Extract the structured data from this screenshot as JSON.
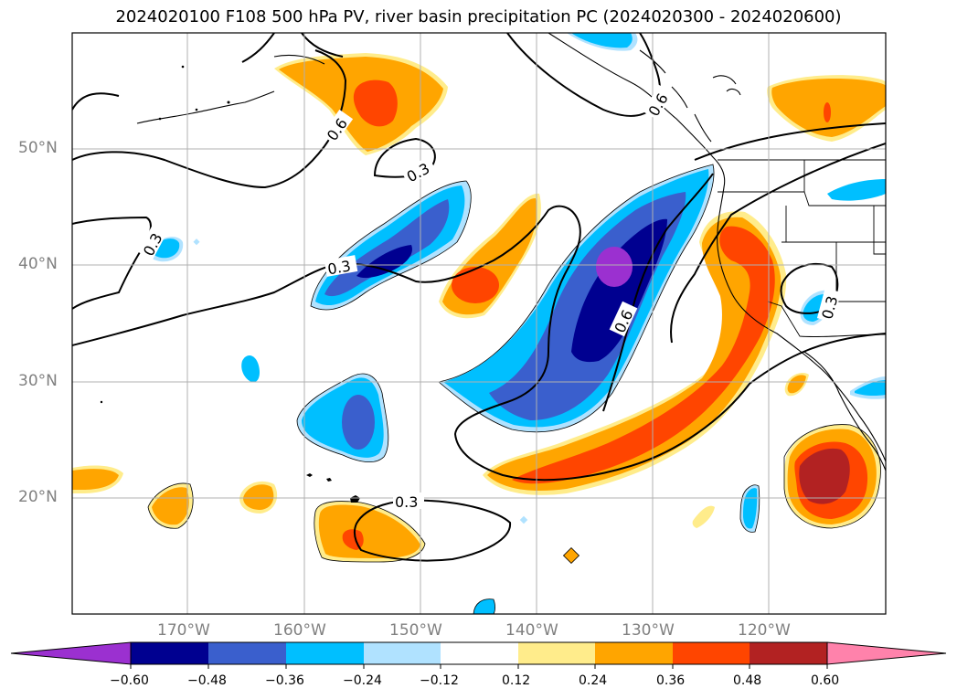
{
  "title": "2024020100 F108 500 hPa PV, river basin precipitation PC (2024020300 - 2024020600)",
  "lat_ticks": [
    "50°N",
    "40°N",
    "30°N",
    "20°N"
  ],
  "lon_ticks": [
    "170°W",
    "160°W",
    "150°W",
    "140°W",
    "130°W",
    "120°W"
  ],
  "contour_labels": [
    "0.3",
    "0.3",
    "0.3",
    "0.3",
    "0.6",
    "0.6",
    "0.6",
    "0.3"
  ],
  "colorbar": {
    "tick_labels": [
      "−0.60",
      "−0.48",
      "−0.36",
      "−0.24",
      "−0.12",
      "0.12",
      "0.24",
      "0.36",
      "0.48",
      "0.60"
    ],
    "colors": [
      "#9b30d0",
      "#000090",
      "#3a5fcd",
      "#00bfff",
      "#b0e2ff",
      "#ffffff",
      "#ffec8b",
      "#ffa500",
      "#ff4500",
      "#b22222",
      "#ff82ab"
    ]
  },
  "palette": {
    "pos_light": "#ffec8b",
    "pos_med": "#ffa500",
    "pos_strong": "#ff4500",
    "pos_max": "#b22222",
    "neg_light": "#b0e2ff",
    "neg_med": "#00bfff",
    "neg_strong": "#3a5fcd",
    "neg_deep": "#000090",
    "neg_max": "#9b30d0"
  }
}
